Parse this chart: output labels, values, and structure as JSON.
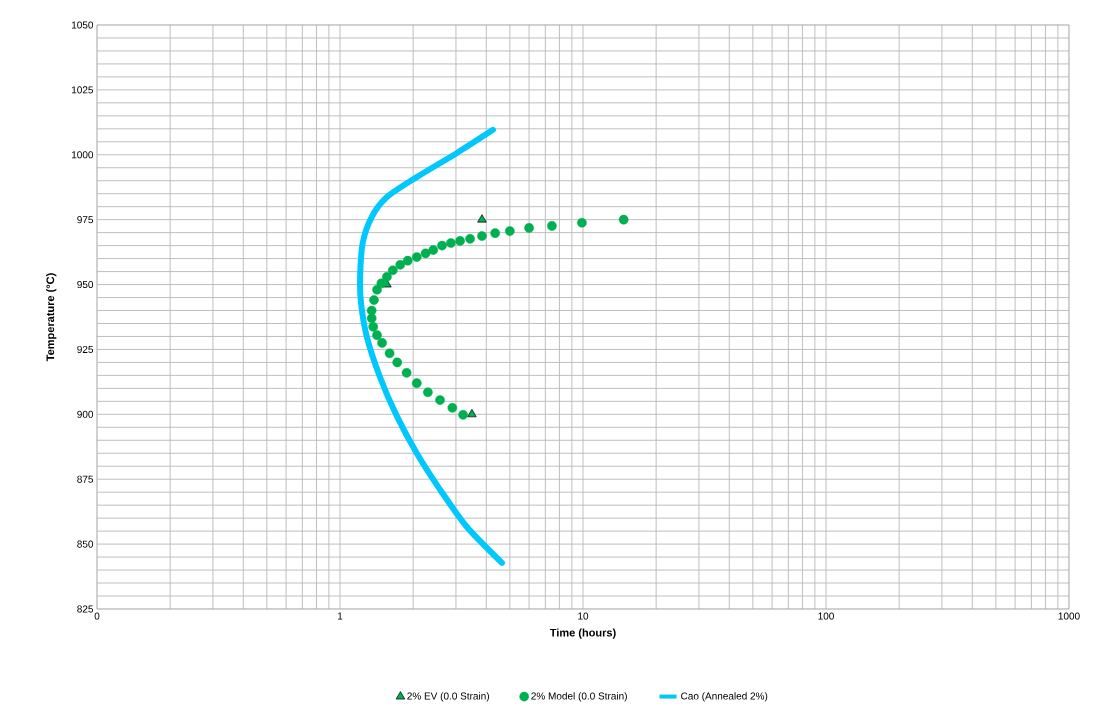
{
  "chart_data": {
    "type": "scatter",
    "xlabel": "Time (hours)",
    "ylabel": "Temperature (°C)",
    "log": "x",
    "grid": true,
    "legend": "bottom",
    "xlim": [
      0.1,
      1000
    ],
    "xticks": [
      {
        "value": 0.1,
        "label": "0"
      },
      1,
      10,
      100,
      1000
    ],
    "ylim": [
      825,
      1050
    ],
    "yticks": [
      825,
      850,
      875,
      900,
      925,
      950,
      975,
      1000,
      1025,
      1050
    ],
    "series": [
      {
        "name": "2% EV (0.0 Strain)",
        "type": "scatter",
        "marker": "triangle",
        "color": "#00b050",
        "x": [
          3.84,
          1.56,
          3.49
        ],
        "values": [
          975,
          950,
          900
        ]
      },
      {
        "name": "2% Model (0.0 Strain)",
        "type": "scatter",
        "marker": "circle",
        "color": "#00b050",
        "x": [
          14.7,
          9.9,
          7.45,
          6.0,
          5.0,
          4.35,
          3.84,
          3.43,
          3.12,
          2.86,
          2.63,
          2.42,
          2.25,
          2.07,
          1.9,
          1.77,
          1.65,
          1.56,
          1.48,
          1.42,
          1.38,
          1.35,
          1.35,
          1.37,
          1.42,
          1.49,
          1.6,
          1.72,
          1.88,
          2.07,
          2.3,
          2.58,
          2.9,
          3.21
        ],
        "values": [
          975,
          973.8,
          972.6,
          971.8,
          970.6,
          969.8,
          968.7,
          967.6,
          966.8,
          966,
          965,
          963.3,
          962,
          960.6,
          959.2,
          957.6,
          955.5,
          953,
          950.5,
          948,
          944,
          940,
          937,
          933.7,
          930.5,
          927.5,
          923.5,
          920,
          916,
          912,
          908.5,
          905.5,
          902.5,
          899.8
        ]
      },
      {
        "name": "Cao (Annealed 2%)",
        "type": "line",
        "marker": "none",
        "color": "#00c8ff",
        "x": [
          4.26,
          3.03,
          2.07,
          1.56,
          1.35,
          1.24,
          1.21,
          1.22,
          1.29,
          1.46,
          1.72,
          2.07,
          2.58,
          3.33,
          4.64
        ],
        "values": [
          1009.6,
          1000.7,
          991.4,
          983.7,
          976,
          966,
          953,
          943,
          929.8,
          914.4,
          899,
          885,
          871,
          856.6,
          842.8
        ]
      }
    ]
  }
}
